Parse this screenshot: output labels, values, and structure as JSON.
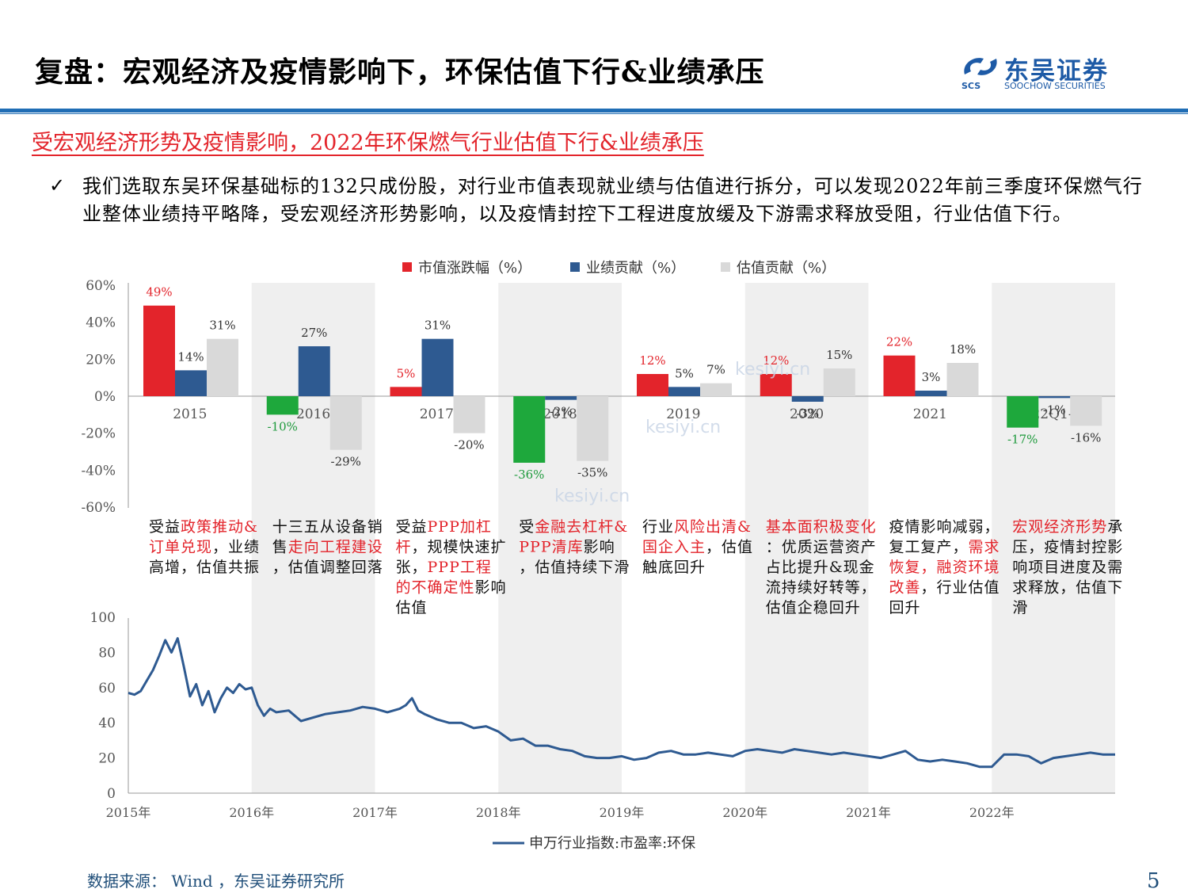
{
  "header": {
    "title": "复盘：宏观经济及疫情影响下，环保估值下行&业绩承压",
    "logo_cn": "东吴证券",
    "logo_en": "SOOCHOW SECURITIES",
    "logo_abbr": "SCS"
  },
  "subtitle": "受宏观经济形势及疫情影响，2022年环保燃气行业估值下行&业绩承压",
  "bullet": {
    "mark": "✓",
    "text": "我们选取东吴环保基础标的132只成份股，对行业市值表现就业绩与估值进行拆分，可以发现2022年前三季度环保燃气行业整体业绩持平略降，受宏观经济形势影响，以及疫情封控下工程进度放缓及下游需求释放受阻，行业估值下行。"
  },
  "chart_data": [
    {
      "type": "bar",
      "categories": [
        "2015",
        "2016",
        "2017",
        "2018",
        "2019",
        "2020",
        "2021",
        "2022Q1-Q3"
      ],
      "series": [
        {
          "name": "市值涨跌幅（%）",
          "color": "#e3242b",
          "values": [
            49,
            -10,
            5,
            -36,
            12,
            12,
            22,
            -17
          ],
          "labels": [
            "49%",
            "-10%",
            "5%",
            "-36%",
            "12%",
            "12%",
            "22%",
            "-17%"
          ]
        },
        {
          "name": "业绩贡献（%）",
          "color": "#2e5a91",
          "values": [
            14,
            27,
            31,
            -2,
            5,
            -3,
            3,
            -1
          ],
          "labels": [
            "14%",
            "27%",
            "31%",
            "-2%",
            "5%",
            "-3%",
            "3%",
            "-1%"
          ]
        },
        {
          "name": "估值贡献（%）",
          "color": "#d9d9d9",
          "values": [
            31,
            -29,
            -20,
            -35,
            7,
            15,
            18,
            -16
          ],
          "labels": [
            "31%",
            "-29%",
            "-20%",
            "-35%",
            "7%",
            "15%",
            "18%",
            "-16%"
          ]
        }
      ],
      "ylim": [
        -60,
        60
      ],
      "yticks": [
        "-60%",
        "-40%",
        "-20%",
        "0%",
        "20%",
        "40%",
        "60%"
      ],
      "legend": "top",
      "notes": [
        [
          {
            "t": "受益"
          },
          {
            "t": "政策推动&订单兑现",
            "red": true
          },
          {
            "t": "，业绩高增，估值共振"
          }
        ],
        [
          {
            "t": "十三五从设备销售"
          },
          {
            "t": "走向工程建设",
            "red": true
          },
          {
            "t": "，估值调整回落"
          }
        ],
        [
          {
            "t": "受益"
          },
          {
            "t": "PPP加杠杆",
            "red": true
          },
          {
            "t": "，规模快速扩张，"
          },
          {
            "t": "PPP工程的不确定性",
            "red": true
          },
          {
            "t": "影响估值"
          }
        ],
        [
          {
            "t": "受"
          },
          {
            "t": "金融去杠杆&PPP清库",
            "red": true
          },
          {
            "t": "影响，估值持续下滑"
          }
        ],
        [
          {
            "t": "行业"
          },
          {
            "t": "风险出清&国企入主",
            "red": true
          },
          {
            "t": "，估值触底回升"
          }
        ],
        [
          {
            "t": "基本面积极变化",
            "red": true
          },
          {
            "t": "：优质运营资产占比提升&现金流持续好转等，估值企稳回升"
          }
        ],
        [
          {
            "t": "疫情影响减弱，复工复产，"
          },
          {
            "t": "需求恢复，融资环境改善",
            "red": true
          },
          {
            "t": "，行业估值回升"
          }
        ],
        [
          {
            "t": "宏观经济形势",
            "red": true
          },
          {
            "t": "承压，疫情封控影响项目进度及需求释放，估值下滑"
          }
        ]
      ]
    },
    {
      "type": "line",
      "series": [
        {
          "name": "申万行业指数:市盈率:环保",
          "color": "#2e5a91"
        }
      ],
      "x_ticks": [
        "2015年",
        "2016年",
        "2017年",
        "2018年",
        "2019年",
        "2020年",
        "2021年",
        "2022年"
      ],
      "ylim": [
        0,
        100
      ],
      "yticks": [
        "0",
        "20",
        "40",
        "60",
        "80",
        "100"
      ],
      "x": [
        2015.0,
        2015.05,
        2015.1,
        2015.15,
        2015.2,
        2015.25,
        2015.3,
        2015.35,
        2015.4,
        2015.45,
        2015.5,
        2015.55,
        2015.6,
        2015.65,
        2015.7,
        2015.75,
        2015.8,
        2015.85,
        2015.9,
        2015.95,
        2016.0,
        2016.05,
        2016.1,
        2016.15,
        2016.2,
        2016.3,
        2016.4,
        2016.5,
        2016.6,
        2016.7,
        2016.8,
        2016.9,
        2017.0,
        2017.1,
        2017.2,
        2017.25,
        2017.3,
        2017.35,
        2017.4,
        2017.5,
        2017.6,
        2017.7,
        2017.8,
        2017.9,
        2018.0,
        2018.1,
        2018.2,
        2018.3,
        2018.4,
        2018.5,
        2018.6,
        2018.7,
        2018.8,
        2018.9,
        2019.0,
        2019.1,
        2019.2,
        2019.3,
        2019.4,
        2019.5,
        2019.6,
        2019.7,
        2019.8,
        2019.9,
        2020.0,
        2020.1,
        2020.2,
        2020.3,
        2020.4,
        2020.5,
        2020.6,
        2020.7,
        2020.8,
        2020.9,
        2021.0,
        2021.1,
        2021.2,
        2021.3,
        2021.4,
        2021.5,
        2021.6,
        2021.7,
        2021.8,
        2021.9,
        2022.0,
        2022.1,
        2022.2,
        2022.3,
        2022.4,
        2022.5,
        2022.6,
        2022.7,
        2022.8,
        2022.9,
        2023.0
      ],
      "y": [
        57,
        56,
        58,
        64,
        70,
        78,
        87,
        80,
        88,
        72,
        55,
        62,
        50,
        58,
        46,
        54,
        60,
        57,
        62,
        59,
        60,
        50,
        44,
        48,
        46,
        47,
        41,
        43,
        45,
        46,
        47,
        49,
        48,
        46,
        48,
        50,
        54,
        47,
        45,
        42,
        40,
        40,
        37,
        38,
        35,
        30,
        31,
        27,
        27,
        25,
        24,
        21,
        20,
        20,
        21,
        19,
        20,
        23,
        24,
        22,
        22,
        23,
        22,
        21,
        24,
        25,
        24,
        23,
        25,
        24,
        23,
        22,
        23,
        22,
        21,
        20,
        22,
        24,
        19,
        18,
        19,
        18,
        17,
        15,
        15,
        22,
        22,
        21,
        17,
        20,
        21,
        22,
        23,
        22,
        22
      ]
    }
  ],
  "source": "数据来源： Wind ，东吴证券研究所",
  "page_number": "5",
  "watermark": "kesiyi.cn"
}
